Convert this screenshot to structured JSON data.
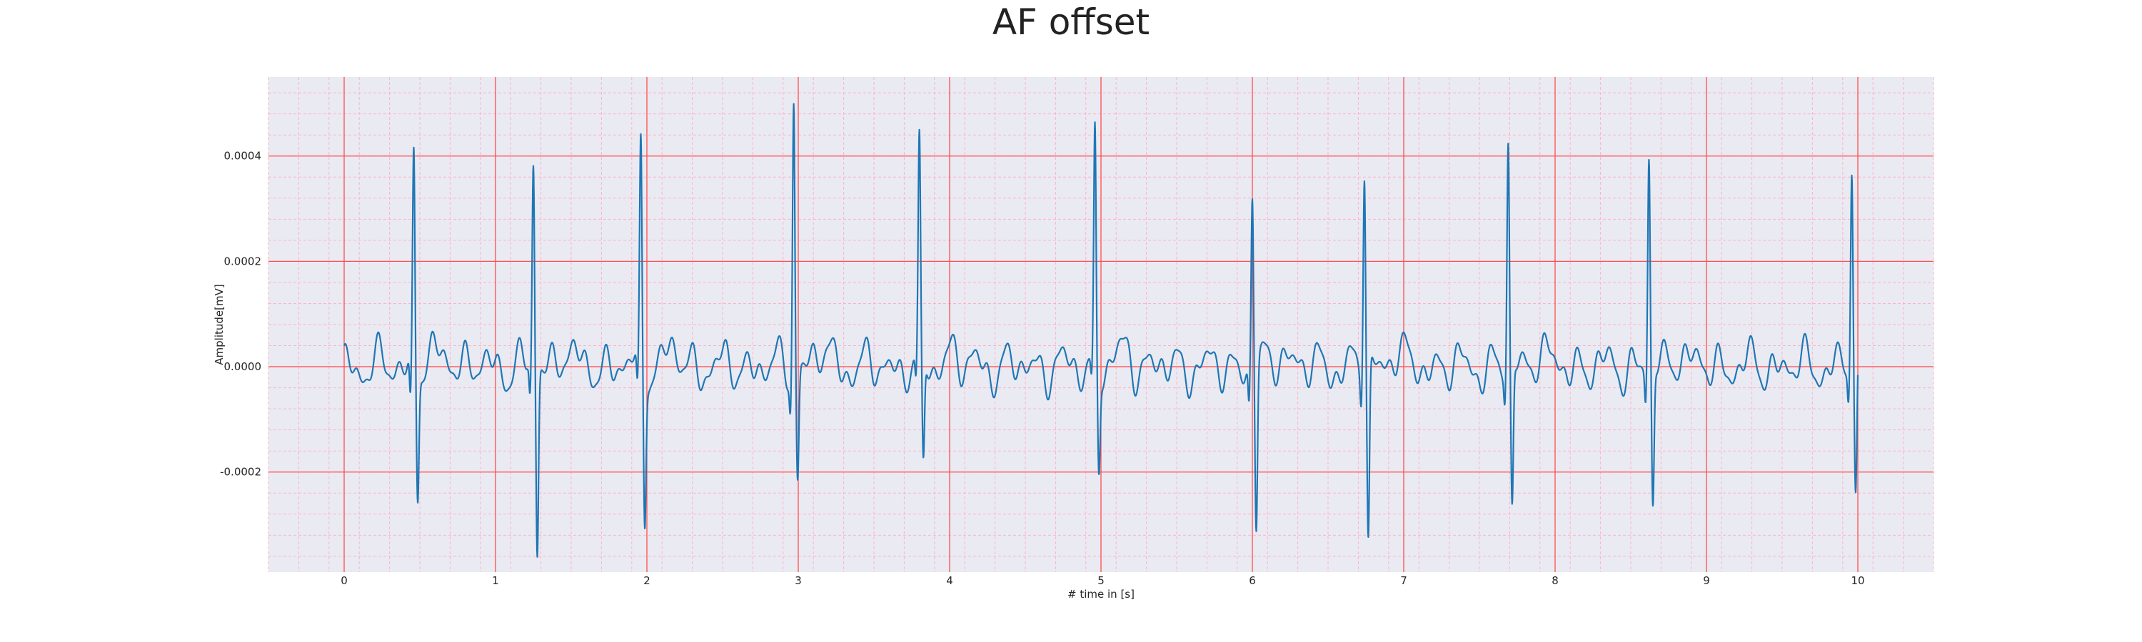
{
  "chart_data": {
    "type": "line",
    "title": "AF offset",
    "xlabel": "# time in [s]",
    "ylabel": "Amplitude[mV]",
    "xlim": [
      -0.5,
      10.5
    ],
    "ylim": [
      -0.00039,
      0.00055
    ],
    "xticks": [
      0,
      1,
      2,
      3,
      4,
      5,
      6,
      7,
      8,
      9,
      10
    ],
    "xtick_labels": [
      "0",
      "1",
      "2",
      "3",
      "4",
      "5",
      "6",
      "7",
      "8",
      "9",
      "10"
    ],
    "yticks": [
      -0.0002,
      0.0,
      0.0002,
      0.0004
    ],
    "ytick_labels": [
      "-0.0002",
      "0.0000",
      "0.0002",
      "0.0004"
    ],
    "grid": true,
    "minor_grid": true,
    "background": "#eaeaf2",
    "major_grid_color": "#ff4d4d",
    "minor_grid_color": "#ffb3c6",
    "series": [
      {
        "color": "#1f77b4",
        "baseline": 0.0,
        "beats": [
          {
            "t": 0.46,
            "q": -8e-05,
            "r": 0.00041,
            "s": -0.00023
          },
          {
            "t": 1.25,
            "q": -6e-05,
            "r": 0.000385,
            "s": -0.00035
          },
          {
            "t": 1.96,
            "q": -7e-05,
            "r": 0.000415,
            "s": -0.00027
          },
          {
            "t": 2.97,
            "q": -6e-05,
            "r": 0.00052,
            "s": -0.0002
          },
          {
            "t": 3.8,
            "q": -5e-05,
            "r": 0.0004,
            "s": -0.00021
          },
          {
            "t": 4.96,
            "q": -4e-05,
            "r": 0.00044,
            "s": -0.00019
          },
          {
            "t": 6.0,
            "q": -7e-05,
            "r": 0.000335,
            "s": -0.0003
          },
          {
            "t": 6.74,
            "q": -5e-05,
            "r": 0.00039,
            "s": -0.00034
          },
          {
            "t": 7.69,
            "q": -5e-05,
            "r": 0.00042,
            "s": -0.00028
          },
          {
            "t": 8.62,
            "q": -6e-05,
            "r": 0.000395,
            "s": -0.00027
          },
          {
            "t": 9.96,
            "q": -5e-05,
            "r": 0.00039,
            "s": -0.000255
          }
        ],
        "fibrillation_noise_amplitude": 3e-05,
        "t_start": 0.0,
        "t_end": 10.0
      }
    ]
  }
}
